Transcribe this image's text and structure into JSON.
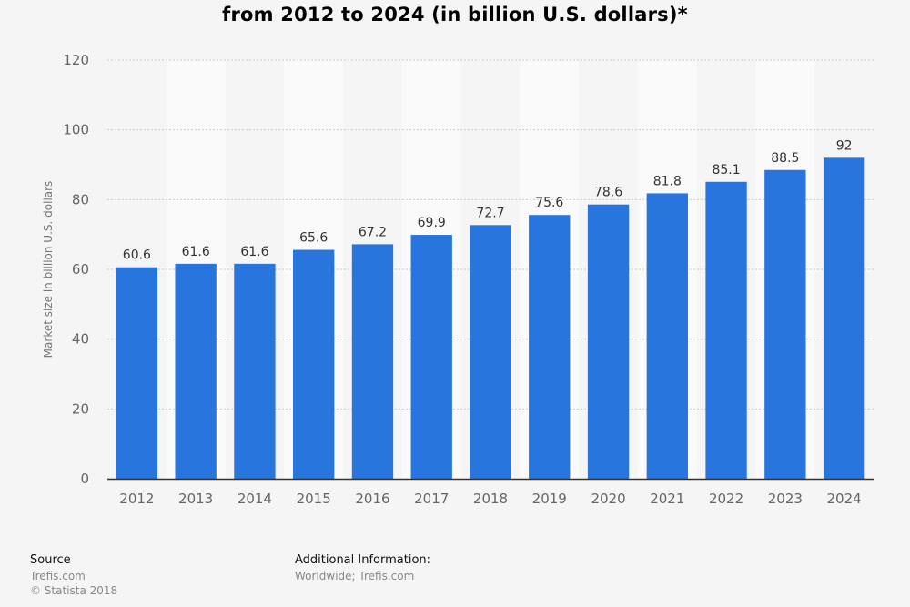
{
  "chart_data": {
    "type": "bar",
    "title": "from 2012 to 2024 (in billion U.S. dollars)*",
    "xlabel": "",
    "ylabel": "Market size in billion U.S. dollars",
    "categories": [
      "2012",
      "2013",
      "2014",
      "2015",
      "2016",
      "2017",
      "2018",
      "2019",
      "2020",
      "2021",
      "2022",
      "2023",
      "2024"
    ],
    "values": [
      60.6,
      61.6,
      61.6,
      65.6,
      67.2,
      69.9,
      72.7,
      75.6,
      78.6,
      81.8,
      85.1,
      88.5,
      92
    ],
    "data_labels": [
      "60.6",
      "61.6",
      "61.6",
      "65.6",
      "67.2",
      "69.9",
      "72.7",
      "75.6",
      "78.6",
      "81.8",
      "85.1",
      "88.5",
      "92"
    ],
    "ylim": [
      0,
      120
    ],
    "yticks": [
      0,
      20,
      40,
      60,
      80,
      100,
      120
    ],
    "ytick_labels": [
      "0",
      "20",
      "40",
      "60",
      "80",
      "100",
      "120"
    ],
    "grid": true,
    "bar_color": "#2875dd",
    "legend": "none"
  },
  "footer": {
    "source_heading": "Source",
    "source_line1": "Trefis.com",
    "source_line2": "© Statista 2018",
    "info_heading": "Additional Information:",
    "info_line1": "Worldwide; Trefis.com"
  }
}
